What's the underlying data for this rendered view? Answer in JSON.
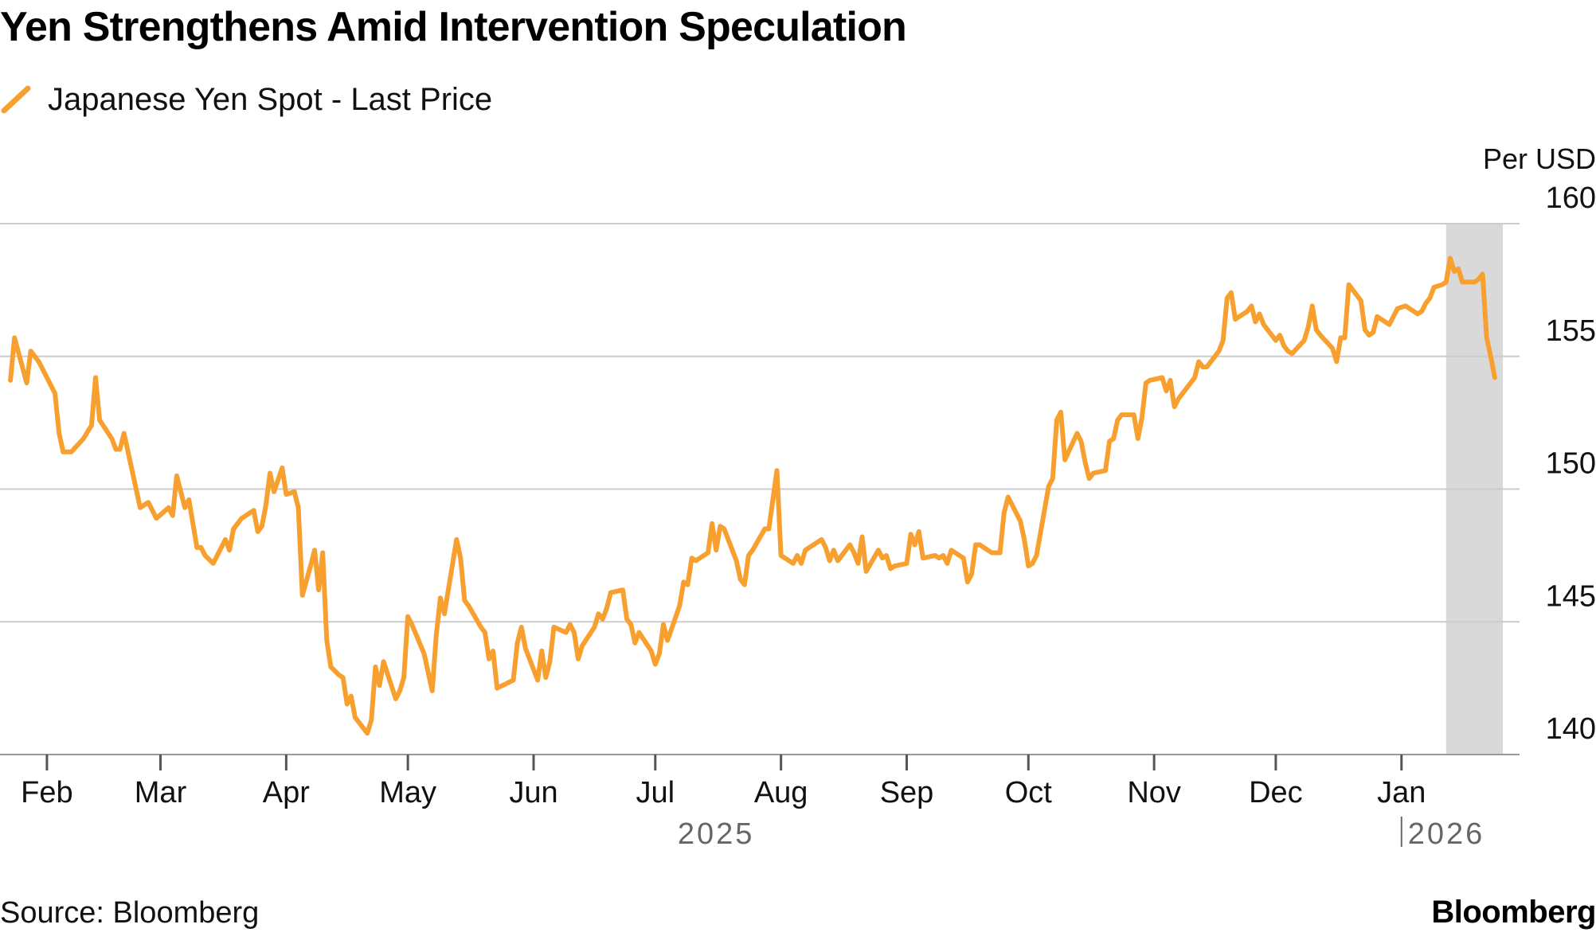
{
  "title": "Yen Strengthens Amid Intervention Speculation",
  "legend": {
    "label": "Japanese Yen Spot - Last Price",
    "icon": "line-swatch-icon"
  },
  "colors": {
    "series": "#F7A030",
    "highlight": "#D9D9D9",
    "grid": "#CCCCCC",
    "axis": "#999999",
    "muted": "#666666"
  },
  "source": "Source: Bloomberg",
  "brand": "Bloomberg",
  "chart_data": {
    "type": "line",
    "title": "Yen Strengthens Amid Intervention Speculation",
    "ylabel": "Per USD",
    "xlabel": "",
    "ylim": [
      140,
      160
    ],
    "yticks": [
      140,
      145,
      150,
      155,
      160
    ],
    "x_tick_labels": [
      "Feb",
      "Mar",
      "Apr",
      "May",
      "Jun",
      "Jul",
      "Aug",
      "Sep",
      "Oct",
      "Nov",
      "Dec",
      "Jan"
    ],
    "x_tick_dates": [
      "2025-02-01",
      "2025-03-01",
      "2025-04-01",
      "2025-05-01",
      "2025-06-01",
      "2025-07-01",
      "2025-08-01",
      "2025-09-01",
      "2025-10-01",
      "2025-11-01",
      "2025-12-01",
      "2026-01-01"
    ],
    "year_labels": [
      {
        "label": "2025",
        "date": "2025-07-16"
      },
      {
        "label": "2026",
        "date": "2026-01-01"
      }
    ],
    "xlim": [
      "2025-01-22",
      "2026-02-05"
    ],
    "highlight": {
      "start": "2026-01-12",
      "end": "2026-01-26"
    },
    "grid": true,
    "series": [
      {
        "name": "Japanese Yen Spot - Last Price",
        "points": [
          [
            "2025-01-23",
            154.1
          ],
          [
            "2025-01-24",
            155.7
          ],
          [
            "2025-01-27",
            154.0
          ],
          [
            "2025-01-28",
            155.2
          ],
          [
            "2025-01-30",
            154.8
          ],
          [
            "2025-01-31",
            154.5
          ],
          [
            "2025-02-03",
            153.6
          ],
          [
            "2025-02-04",
            152.1
          ],
          [
            "2025-02-05",
            151.4
          ],
          [
            "2025-02-07",
            151.4
          ],
          [
            "2025-02-10",
            151.9
          ],
          [
            "2025-02-12",
            152.4
          ],
          [
            "2025-02-13",
            154.2
          ],
          [
            "2025-02-14",
            152.6
          ],
          [
            "2025-02-17",
            151.9
          ],
          [
            "2025-02-18",
            151.5
          ],
          [
            "2025-02-19",
            151.5
          ],
          [
            "2025-02-20",
            152.1
          ],
          [
            "2025-02-21",
            151.4
          ],
          [
            "2025-02-24",
            149.3
          ],
          [
            "2025-02-26",
            149.5
          ],
          [
            "2025-02-28",
            148.9
          ],
          [
            "2025-03-03",
            149.3
          ],
          [
            "2025-03-04",
            149.0
          ],
          [
            "2025-03-05",
            150.5
          ],
          [
            "2025-03-06",
            149.9
          ],
          [
            "2025-03-07",
            149.3
          ],
          [
            "2025-03-08",
            149.6
          ],
          [
            "2025-03-10",
            147.8
          ],
          [
            "2025-03-11",
            147.8
          ],
          [
            "2025-03-12",
            147.5
          ],
          [
            "2025-03-14",
            147.2
          ],
          [
            "2025-03-17",
            148.1
          ],
          [
            "2025-03-18",
            147.7
          ],
          [
            "2025-03-19",
            148.5
          ],
          [
            "2025-03-21",
            148.9
          ],
          [
            "2025-03-24",
            149.2
          ],
          [
            "2025-03-25",
            148.4
          ],
          [
            "2025-03-26",
            148.6
          ],
          [
            "2025-03-27",
            149.4
          ],
          [
            "2025-03-28",
            150.6
          ],
          [
            "2025-03-29",
            149.9
          ],
          [
            "2025-03-31",
            150.8
          ],
          [
            "2025-04-01",
            149.8
          ],
          [
            "2025-04-03",
            149.9
          ],
          [
            "2025-04-04",
            149.3
          ],
          [
            "2025-04-05",
            146.0
          ],
          [
            "2025-04-07",
            147.1
          ],
          [
            "2025-04-08",
            147.7
          ],
          [
            "2025-04-09",
            146.2
          ],
          [
            "2025-04-10",
            147.6
          ],
          [
            "2025-04-11",
            144.3
          ],
          [
            "2025-04-12",
            143.3
          ],
          [
            "2025-04-14",
            143.0
          ],
          [
            "2025-04-15",
            142.9
          ],
          [
            "2025-04-16",
            141.9
          ],
          [
            "2025-04-17",
            142.2
          ],
          [
            "2025-04-18",
            141.4
          ],
          [
            "2025-04-21",
            140.8
          ],
          [
            "2025-04-22",
            141.3
          ],
          [
            "2025-04-23",
            143.3
          ],
          [
            "2025-04-24",
            142.6
          ],
          [
            "2025-04-25",
            143.5
          ],
          [
            "2025-04-28",
            142.1
          ],
          [
            "2025-04-29",
            142.4
          ],
          [
            "2025-04-30",
            142.9
          ],
          [
            "2025-05-01",
            145.2
          ],
          [
            "2025-05-02",
            144.9
          ],
          [
            "2025-05-05",
            143.8
          ],
          [
            "2025-05-06",
            143.1
          ],
          [
            "2025-05-07",
            142.4
          ],
          [
            "2025-05-08",
            144.5
          ],
          [
            "2025-05-09",
            145.9
          ],
          [
            "2025-05-10",
            145.3
          ],
          [
            "2025-05-13",
            148.1
          ],
          [
            "2025-05-14",
            147.4
          ],
          [
            "2025-05-15",
            145.8
          ],
          [
            "2025-05-16",
            145.6
          ],
          [
            "2025-05-19",
            144.8
          ],
          [
            "2025-05-20",
            144.6
          ],
          [
            "2025-05-21",
            143.6
          ],
          [
            "2025-05-22",
            143.9
          ],
          [
            "2025-05-23",
            142.5
          ],
          [
            "2025-05-27",
            142.8
          ],
          [
            "2025-05-28",
            144.2
          ],
          [
            "2025-05-29",
            144.8
          ],
          [
            "2025-05-30",
            144.0
          ],
          [
            "2025-06-02",
            142.8
          ],
          [
            "2025-06-03",
            143.9
          ],
          [
            "2025-06-04",
            142.9
          ],
          [
            "2025-06-05",
            143.5
          ],
          [
            "2025-06-06",
            144.8
          ],
          [
            "2025-06-09",
            144.6
          ],
          [
            "2025-06-10",
            144.9
          ],
          [
            "2025-06-11",
            144.6
          ],
          [
            "2025-06-12",
            143.6
          ],
          [
            "2025-06-13",
            144.1
          ],
          [
            "2025-06-16",
            144.8
          ],
          [
            "2025-06-17",
            145.3
          ],
          [
            "2025-06-18",
            145.1
          ],
          [
            "2025-06-19",
            145.5
          ],
          [
            "2025-06-20",
            146.1
          ],
          [
            "2025-06-23",
            146.2
          ],
          [
            "2025-06-24",
            145.1
          ],
          [
            "2025-06-25",
            144.9
          ],
          [
            "2025-06-26",
            144.2
          ],
          [
            "2025-06-27",
            144.6
          ],
          [
            "2025-06-30",
            143.9
          ],
          [
            "2025-07-01",
            143.4
          ],
          [
            "2025-07-02",
            143.8
          ],
          [
            "2025-07-03",
            144.9
          ],
          [
            "2025-07-04",
            144.3
          ],
          [
            "2025-07-07",
            145.6
          ],
          [
            "2025-07-08",
            146.5
          ],
          [
            "2025-07-09",
            146.4
          ],
          [
            "2025-07-10",
            147.4
          ],
          [
            "2025-07-11",
            147.3
          ],
          [
            "2025-07-14",
            147.6
          ],
          [
            "2025-07-15",
            148.7
          ],
          [
            "2025-07-16",
            147.7
          ],
          [
            "2025-07-17",
            148.6
          ],
          [
            "2025-07-18",
            148.5
          ],
          [
            "2025-07-21",
            147.3
          ],
          [
            "2025-07-22",
            146.6
          ],
          [
            "2025-07-23",
            146.4
          ],
          [
            "2025-07-24",
            147.5
          ],
          [
            "2025-07-25",
            147.7
          ],
          [
            "2025-07-28",
            148.5
          ],
          [
            "2025-07-29",
            148.5
          ],
          [
            "2025-07-31",
            150.7
          ],
          [
            "2025-08-01",
            147.5
          ],
          [
            "2025-08-04",
            147.2
          ],
          [
            "2025-08-05",
            147.5
          ],
          [
            "2025-08-06",
            147.2
          ],
          [
            "2025-08-07",
            147.7
          ],
          [
            "2025-08-08",
            147.8
          ],
          [
            "2025-08-11",
            148.1
          ],
          [
            "2025-08-12",
            147.8
          ],
          [
            "2025-08-13",
            147.3
          ],
          [
            "2025-08-14",
            147.7
          ],
          [
            "2025-08-15",
            147.3
          ],
          [
            "2025-08-18",
            147.9
          ],
          [
            "2025-08-19",
            147.6
          ],
          [
            "2025-08-20",
            147.2
          ],
          [
            "2025-08-21",
            148.2
          ],
          [
            "2025-08-22",
            146.9
          ],
          [
            "2025-08-25",
            147.7
          ],
          [
            "2025-08-26",
            147.4
          ],
          [
            "2025-08-27",
            147.5
          ],
          [
            "2025-08-28",
            147.0
          ],
          [
            "2025-08-29",
            147.1
          ],
          [
            "2025-09-01",
            147.2
          ],
          [
            "2025-09-02",
            148.3
          ],
          [
            "2025-09-03",
            147.9
          ],
          [
            "2025-09-04",
            148.4
          ],
          [
            "2025-09-05",
            147.4
          ],
          [
            "2025-09-08",
            147.5
          ],
          [
            "2025-09-09",
            147.4
          ],
          [
            "2025-09-10",
            147.5
          ],
          [
            "2025-09-11",
            147.2
          ],
          [
            "2025-09-12",
            147.7
          ],
          [
            "2025-09-15",
            147.4
          ],
          [
            "2025-09-16",
            146.5
          ],
          [
            "2025-09-17",
            146.8
          ],
          [
            "2025-09-18",
            147.9
          ],
          [
            "2025-09-19",
            147.9
          ],
          [
            "2025-09-22",
            147.6
          ],
          [
            "2025-09-24",
            147.6
          ],
          [
            "2025-09-25",
            149.1
          ],
          [
            "2025-09-26",
            149.7
          ],
          [
            "2025-09-29",
            148.8
          ],
          [
            "2025-09-30",
            148.1
          ],
          [
            "2025-10-01",
            147.1
          ],
          [
            "2025-10-02",
            147.2
          ],
          [
            "2025-10-03",
            147.5
          ],
          [
            "2025-10-06",
            150.1
          ],
          [
            "2025-10-07",
            150.4
          ],
          [
            "2025-10-08",
            152.6
          ],
          [
            "2025-10-09",
            152.9
          ],
          [
            "2025-10-10",
            151.1
          ],
          [
            "2025-10-13",
            152.1
          ],
          [
            "2025-10-14",
            151.8
          ],
          [
            "2025-10-15",
            151.0
          ],
          [
            "2025-10-16",
            150.4
          ],
          [
            "2025-10-17",
            150.6
          ],
          [
            "2025-10-20",
            150.7
          ],
          [
            "2025-10-21",
            151.8
          ],
          [
            "2025-10-22",
            151.9
          ],
          [
            "2025-10-23",
            152.6
          ],
          [
            "2025-10-24",
            152.8
          ],
          [
            "2025-10-27",
            152.8
          ],
          [
            "2025-10-28",
            151.9
          ],
          [
            "2025-10-29",
            152.7
          ],
          [
            "2025-10-30",
            154.0
          ],
          [
            "2025-10-31",
            154.1
          ],
          [
            "2025-11-03",
            154.2
          ],
          [
            "2025-11-04",
            153.7
          ],
          [
            "2025-11-05",
            154.1
          ],
          [
            "2025-11-06",
            153.1
          ],
          [
            "2025-11-07",
            153.4
          ],
          [
            "2025-11-10",
            154.0
          ],
          [
            "2025-11-11",
            154.2
          ],
          [
            "2025-11-12",
            154.8
          ],
          [
            "2025-11-13",
            154.6
          ],
          [
            "2025-11-14",
            154.6
          ],
          [
            "2025-11-17",
            155.2
          ],
          [
            "2025-11-18",
            155.6
          ],
          [
            "2025-11-19",
            157.2
          ],
          [
            "2025-11-20",
            157.4
          ],
          [
            "2025-11-21",
            156.4
          ],
          [
            "2025-11-24",
            156.7
          ],
          [
            "2025-11-25",
            156.9
          ],
          [
            "2025-11-26",
            156.3
          ],
          [
            "2025-11-27",
            156.6
          ],
          [
            "2025-11-28",
            156.2
          ],
          [
            "2025-12-01",
            155.6
          ],
          [
            "2025-12-02",
            155.8
          ],
          [
            "2025-12-03",
            155.4
          ],
          [
            "2025-12-04",
            155.2
          ],
          [
            "2025-12-05",
            155.1
          ],
          [
            "2025-12-08",
            155.6
          ],
          [
            "2025-12-09",
            156.1
          ],
          [
            "2025-12-10",
            156.9
          ],
          [
            "2025-12-11",
            156.0
          ],
          [
            "2025-12-12",
            155.8
          ],
          [
            "2025-12-15",
            155.3
          ],
          [
            "2025-12-16",
            154.8
          ],
          [
            "2025-12-17",
            155.7
          ],
          [
            "2025-12-18",
            155.7
          ],
          [
            "2025-12-19",
            157.7
          ],
          [
            "2025-12-22",
            157.1
          ],
          [
            "2025-12-23",
            156.0
          ],
          [
            "2025-12-24",
            155.8
          ],
          [
            "2025-12-25",
            155.9
          ],
          [
            "2025-12-26",
            156.5
          ],
          [
            "2025-12-29",
            156.2
          ],
          [
            "2025-12-30",
            156.5
          ],
          [
            "2025-12-31",
            156.8
          ],
          [
            "2026-01-02",
            156.9
          ],
          [
            "2026-01-05",
            156.6
          ],
          [
            "2026-01-06",
            156.7
          ],
          [
            "2026-01-07",
            157.0
          ],
          [
            "2026-01-08",
            157.2
          ],
          [
            "2026-01-09",
            157.6
          ],
          [
            "2026-01-11",
            157.7
          ],
          [
            "2026-01-12",
            157.8
          ],
          [
            "2026-01-13",
            158.7
          ],
          [
            "2026-01-14",
            158.2
          ],
          [
            "2026-01-15",
            158.3
          ],
          [
            "2026-01-16",
            157.8
          ],
          [
            "2026-01-19",
            157.8
          ],
          [
            "2026-01-20",
            157.9
          ],
          [
            "2026-01-21",
            158.1
          ],
          [
            "2026-01-22",
            155.7
          ],
          [
            "2026-01-23",
            155.0
          ],
          [
            "2026-01-24",
            154.2
          ]
        ]
      }
    ]
  }
}
